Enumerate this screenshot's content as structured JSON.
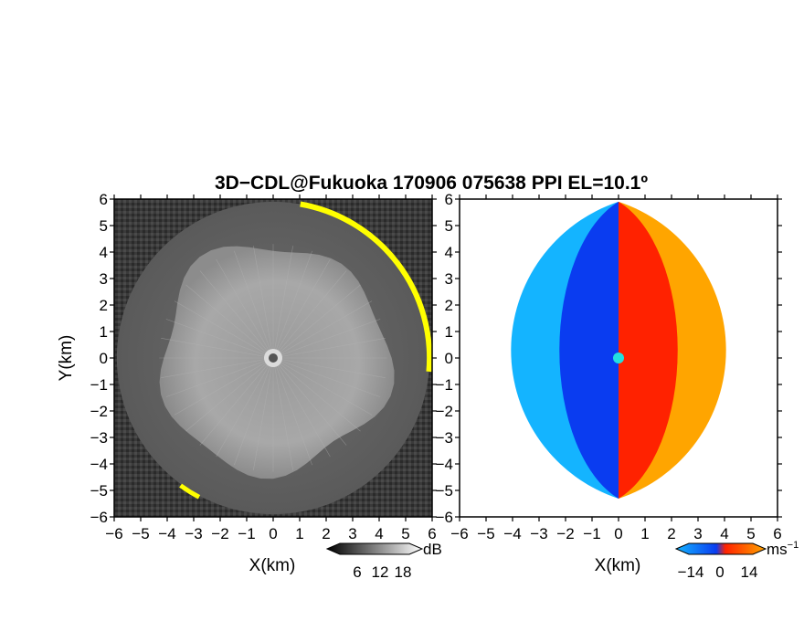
{
  "title": "3D−CDL@Fukuoka 170906 075638 PPI EL=10.1º",
  "colors": {
    "yellow": "#ffff00",
    "blue_dark": "#0a3cf0",
    "blue_light": "#14b4ff",
    "red": "#ff2200",
    "orange": "#ffa500",
    "cyan_marker": "#22e0e0"
  },
  "chart_data": [
    {
      "type": "heatmap",
      "panel": "left",
      "quantity": "reflectivity",
      "xlabel": "X(km)",
      "ylabel": "Y(km)",
      "xlim": [
        -6,
        6
      ],
      "ylim": [
        -6,
        6
      ],
      "x_ticks": [
        -6,
        -5,
        -4,
        -3,
        -2,
        -1,
        0,
        1,
        2,
        3,
        4,
        5,
        6
      ],
      "y_ticks": [
        -6,
        -5,
        -4,
        -3,
        -2,
        -1,
        0,
        1,
        2,
        3,
        4,
        5,
        6
      ],
      "x_tick_labels": [
        "−6",
        "−5",
        "−4",
        "−3",
        "−2",
        "−1",
        "0",
        "1",
        "2",
        "3",
        "4",
        "5",
        "6"
      ],
      "y_tick_labels": [
        "−6",
        "−5",
        "−4",
        "−3",
        "−2",
        "−1",
        "0",
        "1",
        "2",
        "3",
        "4",
        "5",
        "6"
      ],
      "colormap": "grayscale",
      "colorbar": {
        "unit": "dB",
        "ticks": [
          6,
          12,
          18
        ],
        "tick_labels": [
          "6",
          "12",
          "18"
        ]
      },
      "bright_disk_radius_km": 4.3,
      "outer_ring_radius_km": 5.9
    },
    {
      "type": "heatmap",
      "panel": "right",
      "quantity": "doppler_velocity",
      "xlabel": "X(km)",
      "ylabel": "",
      "xlim": [
        -6,
        6
      ],
      "ylim": [
        -6,
        6
      ],
      "x_ticks": [
        -6,
        -5,
        -4,
        -3,
        -2,
        -1,
        0,
        1,
        2,
        3,
        4,
        5,
        6
      ],
      "y_ticks": [
        -6,
        -5,
        -4,
        -3,
        -2,
        -1,
        0,
        1,
        2,
        3,
        4,
        5,
        6
      ],
      "x_tick_labels": [
        "−6",
        "−5",
        "−4",
        "−3",
        "−2",
        "−1",
        "0",
        "1",
        "2",
        "3",
        "4",
        "5",
        "6"
      ],
      "y_tick_labels": [
        "−6",
        "−5",
        "−4",
        "−3",
        "−2",
        "−1",
        "0",
        "1",
        "2",
        "3",
        "4",
        "5",
        "6"
      ],
      "colormap": "blue-red diverging",
      "colorbar": {
        "unit": "ms",
        "unit_exponent": "−1",
        "ticks": [
          -14,
          0,
          14
        ],
        "tick_labels": [
          "−14",
          "0",
          "14"
        ]
      },
      "blue_side": "west",
      "red_side": "east"
    }
  ]
}
